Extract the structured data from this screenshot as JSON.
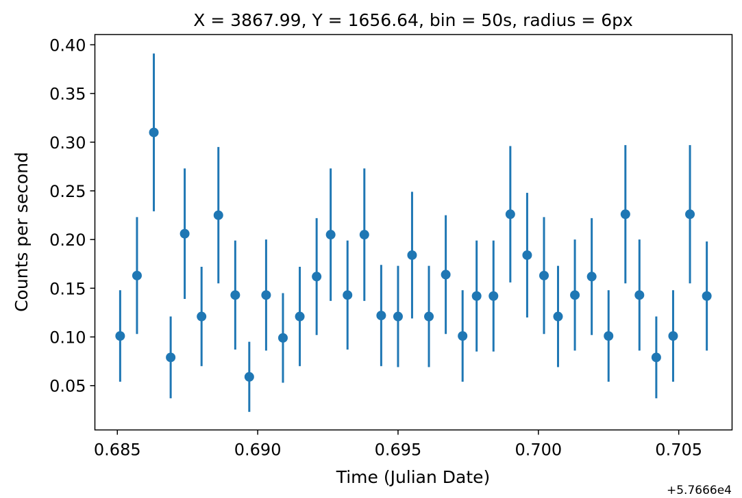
{
  "chart_data": {
    "type": "scatter",
    "title": "X = 3867.99, Y = 1656.64, bin = 50s, radius = 6px",
    "xlabel": "Time (Julian Date)",
    "ylabel": "Counts per second",
    "x_offset_label": "+5.7666e4",
    "x_ticks": [
      "0.685",
      "0.690",
      "0.695",
      "0.700",
      "0.705"
    ],
    "y_ticks": [
      "0.05",
      "0.10",
      "0.15",
      "0.20",
      "0.25",
      "0.30",
      "0.35",
      "0.40"
    ],
    "xlim": [
      0.6842,
      0.7069
    ],
    "ylim": [
      0.0045,
      0.4105
    ],
    "grid": false,
    "color": "#1f77b4",
    "series": [
      {
        "x": [
          0.6851,
          0.6857,
          0.6863,
          0.6869,
          0.6874,
          0.688,
          0.6886,
          0.6892,
          0.6897,
          0.6903,
          0.6909,
          0.6915,
          0.6921,
          0.6926,
          0.6932,
          0.6938,
          0.6944,
          0.695,
          0.6955,
          0.6961,
          0.6967,
          0.6973,
          0.6978,
          0.6984,
          0.699,
          0.6996,
          0.7002,
          0.7007,
          0.7013,
          0.7019,
          0.7025,
          0.7031,
          0.7036,
          0.7042,
          0.7048,
          0.7054,
          0.706
        ],
        "y": [
          0.101,
          0.163,
          0.31,
          0.079,
          0.206,
          0.121,
          0.225,
          0.143,
          0.059,
          0.143,
          0.099,
          0.121,
          0.162,
          0.205,
          0.143,
          0.205,
          0.122,
          0.121,
          0.184,
          0.121,
          0.164,
          0.101,
          0.142,
          0.142,
          0.226,
          0.184,
          0.163,
          0.121,
          0.143,
          0.162,
          0.101,
          0.226,
          0.143,
          0.079,
          0.101,
          0.226,
          0.142
        ],
        "yerr": [
          0.047,
          0.06,
          0.081,
          0.042,
          0.067,
          0.051,
          0.07,
          0.056,
          0.036,
          0.057,
          0.046,
          0.051,
          0.06,
          0.068,
          0.056,
          0.068,
          0.052,
          0.052,
          0.065,
          0.052,
          0.061,
          0.047,
          0.057,
          0.057,
          0.07,
          0.064,
          0.06,
          0.052,
          0.057,
          0.06,
          0.047,
          0.071,
          0.057,
          0.042,
          0.047,
          0.071,
          0.056
        ]
      }
    ]
  }
}
